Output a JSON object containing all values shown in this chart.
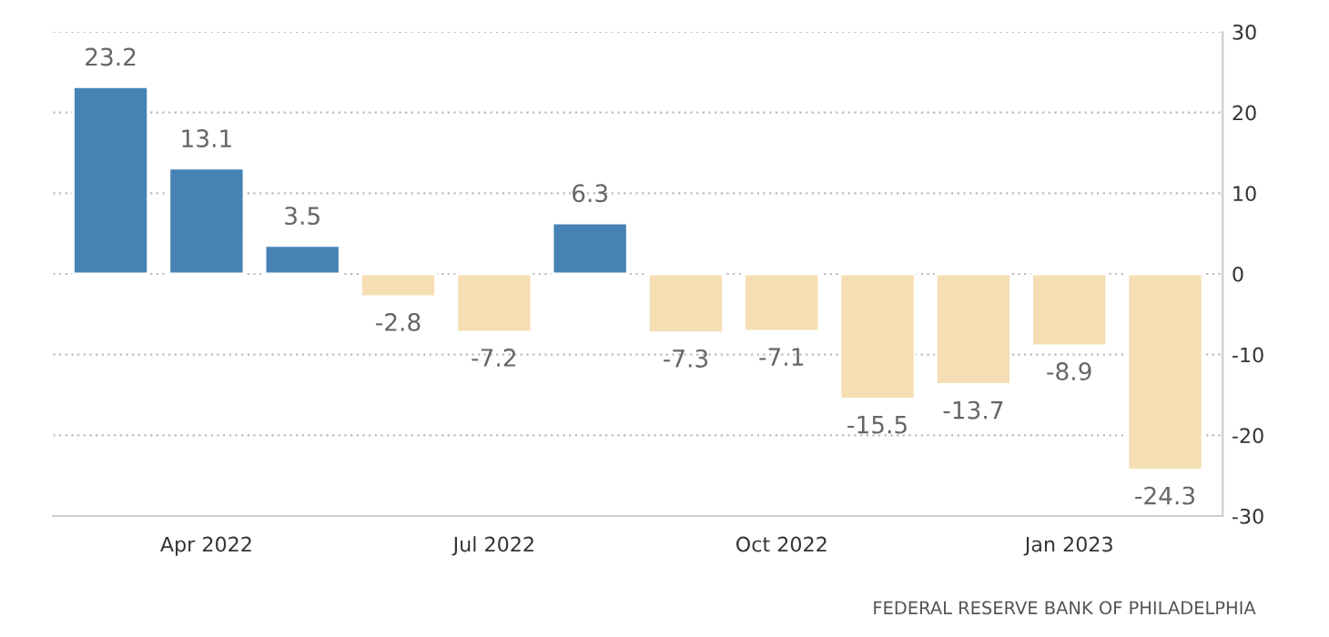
{
  "chart_data": {
    "type": "bar",
    "categories": [
      null,
      "Apr 2022",
      null,
      null,
      "Jul 2022",
      null,
      null,
      "Oct 2022",
      null,
      null,
      "Jan 2023",
      null
    ],
    "values": [
      23.2,
      13.1,
      3.5,
      -2.8,
      -7.2,
      6.3,
      -7.3,
      -7.1,
      -15.5,
      -13.7,
      -8.9,
      -24.3
    ],
    "colors": [
      "#4682b4",
      "#4682b4",
      "#4682b4",
      "#f5deb3",
      "#f5deb3",
      "#4682b4",
      "#f5deb3",
      "#f5deb3",
      "#f5deb3",
      "#f5deb3",
      "#f5deb3",
      "#f5deb3"
    ],
    "ylim": [
      -30,
      30
    ],
    "yticks": [
      -30,
      -20,
      -10,
      0,
      10,
      20,
      30
    ],
    "grid": "y",
    "data_labels": true,
    "annotations": [
      "FEDERAL RESERVE BANK OF PHILADELPHIA"
    ]
  }
}
